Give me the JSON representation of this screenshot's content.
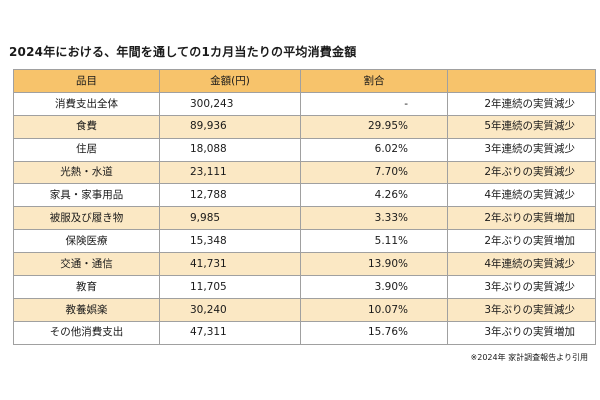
{
  "title": "2024年における、年間を通しての1カ月当たりの平均消費金額",
  "table": {
    "headers": [
      "品目",
      "金額(円)",
      "割合",
      ""
    ],
    "rows": [
      {
        "item": "消費支出全体",
        "amount": "300,243",
        "ratio": "-",
        "note": "2年連続の実質減少"
      },
      {
        "item": "食費",
        "amount": "89,936",
        "ratio": "29.95%",
        "note": "5年連続の実質減少"
      },
      {
        "item": "住居",
        "amount": "18,088",
        "ratio": "6.02%",
        "note": "3年連続の実質減少"
      },
      {
        "item": "光熱・水道",
        "amount": "23,111",
        "ratio": "7.70%",
        "note": "2年ぶりの実質減少"
      },
      {
        "item": "家具・家事用品",
        "amount": "12,788",
        "ratio": "4.26%",
        "note": "4年連続の実質減少"
      },
      {
        "item": "被服及び履き物",
        "amount": "9,985",
        "ratio": "3.33%",
        "note": "2年ぶりの実質増加"
      },
      {
        "item": "保険医療",
        "amount": "15,348",
        "ratio": "5.11%",
        "note": "2年ぶりの実質増加"
      },
      {
        "item": "交通・通信",
        "amount": "41,731",
        "ratio": "13.90%",
        "note": "4年連続の実質減少"
      },
      {
        "item": "教育",
        "amount": "11,705",
        "ratio": "3.90%",
        "note": "3年ぶりの実質減少"
      },
      {
        "item": "教養娯楽",
        "amount": "30,240",
        "ratio": "10.07%",
        "note": "3年ぶりの実質減少"
      },
      {
        "item": "その他消費支出",
        "amount": "47,311",
        "ratio": "15.76%",
        "note": "3年ぶりの実質増加"
      }
    ]
  },
  "source": "※2024年 家計調査報告より引用",
  "colors": {
    "header_bg": "#f7c36b",
    "stripe_bg": "#fbe8c4",
    "border": "#a0a0a0"
  }
}
